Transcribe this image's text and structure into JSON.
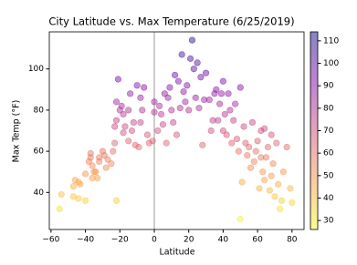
{
  "chart_data": {
    "type": "scatter",
    "title": "City Latitude vs. Max Temperature (6/25/2019)",
    "x_label": "Latitude",
    "y_label": "Max Temp (°F)",
    "x": [
      -55,
      -54,
      -47,
      -47,
      -46,
      -44,
      -43,
      -40,
      -40,
      -38,
      -37,
      -37,
      -36,
      -35,
      -34,
      -33,
      -32,
      -32,
      -30,
      -28,
      -27,
      -25,
      -24,
      -22,
      -23,
      -23,
      -22,
      -22,
      -21,
      -20,
      -19,
      -18,
      -18,
      -17,
      -15,
      -15,
      -14,
      -13,
      -12,
      -11,
      -10,
      -9,
      -8,
      -8,
      -7,
      -6,
      -4,
      -3,
      -1,
      0,
      0,
      2,
      3,
      4,
      5,
      6,
      7,
      8,
      9,
      10,
      11,
      12,
      13,
      14,
      15,
      16,
      17,
      18,
      19,
      20,
      21,
      22,
      23,
      24,
      25,
      26,
      27,
      28,
      29,
      30,
      32,
      33,
      34,
      35,
      36,
      37,
      38,
      39,
      40,
      40,
      41,
      42,
      43,
      44,
      45,
      46,
      47,
      48,
      49,
      50,
      50,
      51,
      52,
      53,
      54,
      55,
      56,
      57,
      58,
      59,
      60,
      61,
      62,
      63,
      64,
      65,
      66,
      67,
      68,
      69,
      70,
      71,
      72,
      73,
      74,
      75,
      77,
      79,
      80,
      68,
      62,
      64,
      -36,
      -29,
      -44
    ],
    "values": [
      32,
      39,
      38,
      43,
      46,
      45,
      44,
      36,
      49,
      55,
      59,
      57,
      53,
      50,
      50,
      47,
      55,
      57,
      60,
      52,
      56,
      54,
      60,
      36,
      64,
      72,
      75,
      84,
      95,
      80,
      82,
      69,
      78,
      72,
      65,
      80,
      88,
      70,
      74,
      63,
      92,
      62,
      86,
      74,
      80,
      91,
      68,
      64,
      65,
      84,
      79,
      70,
      82,
      78,
      73,
      88,
      64,
      86,
      91,
      80,
      74,
      97,
      68,
      94,
      81,
      107,
      89,
      84,
      92,
      80,
      105,
      114,
      100,
      86,
      103,
      81,
      96,
      63,
      85,
      98,
      85,
      70,
      75,
      88,
      90,
      75,
      83,
      88,
      70,
      94,
      78,
      68,
      88,
      80,
      64,
      75,
      83,
      66,
      60,
      91,
      27,
      45,
      72,
      64,
      58,
      62,
      52,
      74,
      55,
      60,
      65,
      42,
      70,
      50,
      46,
      57,
      62,
      41,
      48,
      54,
      38,
      64,
      44,
      32,
      36,
      50,
      62,
      42,
      35,
      68,
      57,
      71,
      47,
      58,
      37
    ],
    "colormap": [
      "#f0f921",
      "#f89540",
      "#cc4778",
      "#7e03a8",
      "#0d0887"
    ],
    "xlim": [
      -61,
      87
    ],
    "ylim": [
      22,
      118
    ],
    "xticks": [
      {
        "value": -60,
        "label": "−60"
      },
      {
        "value": -40,
        "label": "−40"
      },
      {
        "value": -20,
        "label": "−20"
      },
      0,
      20,
      40,
      60,
      80
    ],
    "yticks": [
      40,
      60,
      80,
      100
    ],
    "vline": 0,
    "clim": [
      26,
      114
    ],
    "cticks": [
      30,
      40,
      50,
      60,
      70,
      80,
      90,
      100,
      110
    ]
  }
}
